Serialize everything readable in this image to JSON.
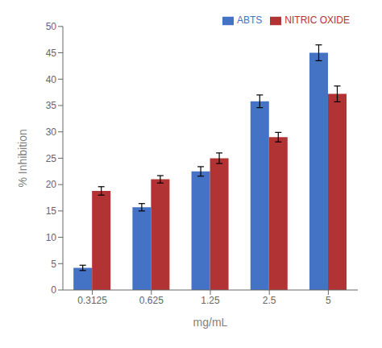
{
  "chart_data": {
    "type": "bar",
    "categories": [
      "0.3125",
      "0.625",
      "1.25",
      "2.5",
      "5"
    ],
    "series": [
      {
        "name": "ABTS",
        "color": "#4472C4",
        "values": [
          4.2,
          15.7,
          22.5,
          35.8,
          45.0
        ],
        "errors": [
          0.5,
          0.7,
          0.9,
          1.2,
          1.5
        ]
      },
      {
        "name": "NITRIC OXIDE",
        "color": "#B23333",
        "values": [
          18.8,
          21.0,
          25.0,
          29.0,
          37.2
        ],
        "errors": [
          0.8,
          0.7,
          1.0,
          0.9,
          1.5
        ]
      }
    ],
    "xlabel": "mg/mL",
    "ylabel": "% Inhibition",
    "ylim": [
      0,
      50
    ],
    "yticks": [
      0,
      5,
      10,
      15,
      20,
      25,
      30,
      35,
      40,
      45,
      50
    ],
    "grid": false,
    "legend": "upper right"
  }
}
